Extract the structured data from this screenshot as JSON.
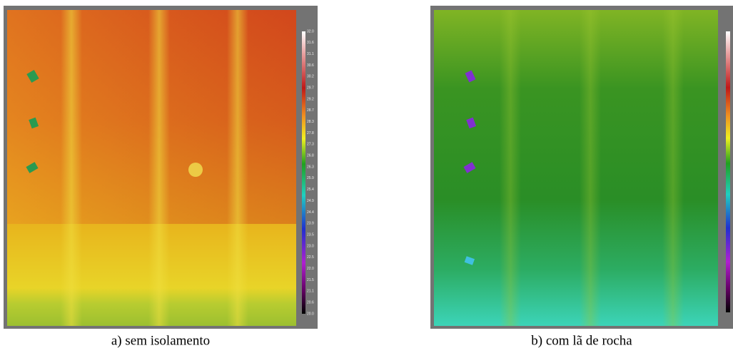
{
  "panels": [
    {
      "caption": "a) sem isolamento",
      "colorbar_labels": [
        "32.0",
        "31.6",
        "31.1",
        "30.6",
        "30.2",
        "29.7",
        "29.2",
        "28.7",
        "28.3",
        "27.8",
        "27.3",
        "26.8",
        "26.3",
        "25.9",
        "25.4",
        "24.9",
        "24.4",
        "23.9",
        "23.5",
        "23.0",
        "22.5",
        "22.0",
        "21.5",
        "21.1",
        "20.6",
        "20.0"
      ]
    },
    {
      "caption": "b) com lã de rocha"
    }
  ]
}
